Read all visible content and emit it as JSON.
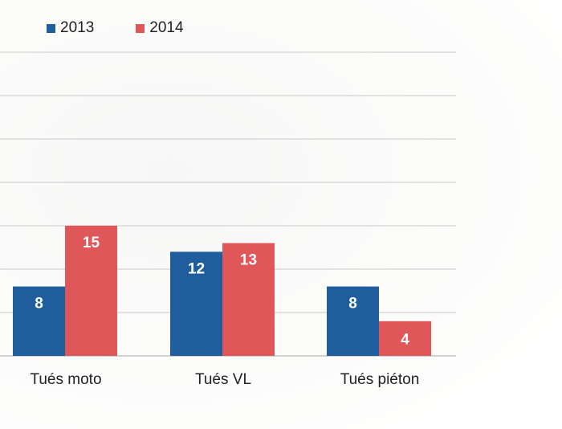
{
  "chart_data": {
    "type": "bar",
    "title": "",
    "xlabel": "",
    "ylabel": "",
    "categories": [
      "Tués moto",
      "Tués VL",
      "Tués piéton"
    ],
    "series": [
      {
        "name": "2013",
        "values": [
          8,
          12,
          8
        ],
        "color": "#1f5d9c"
      },
      {
        "name": "2014",
        "values": [
          15,
          13,
          4
        ],
        "color": "#e0575a"
      }
    ],
    "ylim": [
      0,
      35
    ],
    "grid": true,
    "legend_position": "top-left",
    "data_label_color": "#ffffff"
  }
}
